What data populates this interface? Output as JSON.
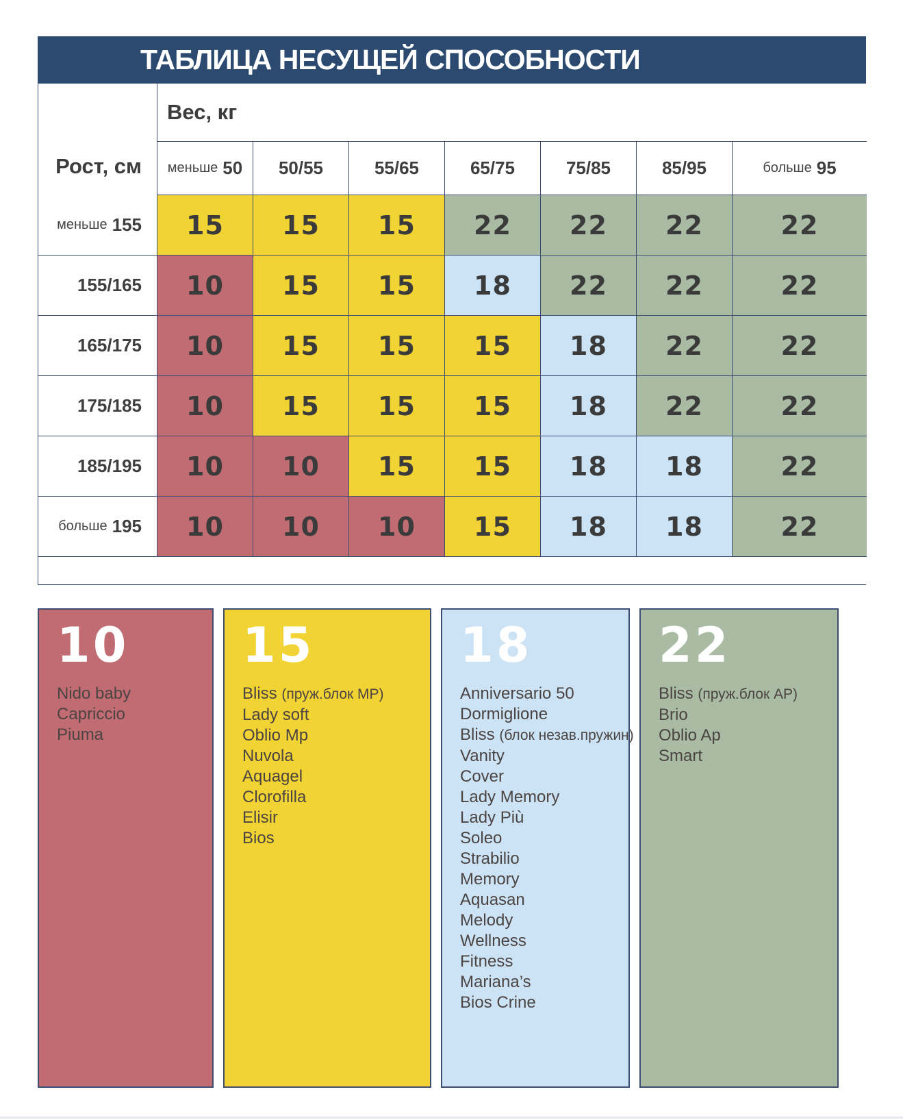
{
  "title": "ТАБЛИЦА НЕСУЩЕЙ СПОСОБНОСТИ",
  "axes": {
    "weight_label": "Вес, кг",
    "height_label": "Рост, см"
  },
  "weight_columns": [
    {
      "prefix": "меньше",
      "bold": "50"
    },
    {
      "bold": "50/55"
    },
    {
      "bold": "55/65"
    },
    {
      "bold": "65/75"
    },
    {
      "bold": "75/85"
    },
    {
      "bold": "85/95"
    },
    {
      "prefix": "больше",
      "bold": "95"
    }
  ],
  "height_rows": [
    {
      "prefix": "меньше",
      "bold": "155"
    },
    {
      "bold": "155/165"
    },
    {
      "bold": "165/175"
    },
    {
      "bold": "175/185"
    },
    {
      "bold": "185/195"
    },
    {
      "prefix": "больше",
      "bold": "195"
    }
  ],
  "chart_data": {
    "type": "heatmap",
    "title": "ТАБЛИЦА НЕСУЩЕЙ СПОСОБНОСТИ",
    "xlabel": "Вес, кг",
    "ylabel": "Рост, см",
    "x_categories": [
      "меньше 50",
      "50/55",
      "55/65",
      "65/75",
      "75/85",
      "85/95",
      "больше 95"
    ],
    "y_categories": [
      "меньше 155",
      "155/165",
      "165/175",
      "175/185",
      "185/195",
      "больше 195"
    ],
    "values": [
      [
        15,
        15,
        15,
        22,
        22,
        22,
        22
      ],
      [
        10,
        15,
        15,
        18,
        22,
        22,
        22
      ],
      [
        10,
        15,
        15,
        15,
        18,
        22,
        22
      ],
      [
        10,
        15,
        15,
        15,
        18,
        22,
        22
      ],
      [
        10,
        10,
        15,
        15,
        18,
        18,
        22
      ],
      [
        10,
        10,
        10,
        15,
        18,
        18,
        22
      ]
    ],
    "value_colors": {
      "10": "#C16C72",
      "15": "#F2D334",
      "18": "#CCE3F5",
      "22": "#A9BCA3"
    },
    "legend_position": "bottom"
  },
  "legend": [
    {
      "value": "10",
      "items": [
        {
          "name": "Nido baby"
        },
        {
          "name": "Capriccio"
        },
        {
          "name": "Piuma"
        }
      ]
    },
    {
      "value": "15",
      "items": [
        {
          "name": "Bliss",
          "note": "(пруж.блок MP)"
        },
        {
          "name": "Lady soft"
        },
        {
          "name": "Oblio Mp"
        },
        {
          "name": "Nuvola"
        },
        {
          "name": "Aquagel"
        },
        {
          "name": "Clorofilla"
        },
        {
          "name": "Elisir"
        },
        {
          "name": "Bios"
        }
      ]
    },
    {
      "value": "18",
      "items": [
        {
          "name": "Anniversario 50"
        },
        {
          "name": "Dormiglione"
        },
        {
          "name": "Bliss",
          "note": "(блок незав.пружин)"
        },
        {
          "name": "Vanity"
        },
        {
          "name": "Cover"
        },
        {
          "name": "Lady Memory"
        },
        {
          "name": "Lady Più"
        },
        {
          "name": "Soleo"
        },
        {
          "name": "Strabilio"
        },
        {
          "name": "Memory"
        },
        {
          "name": "Aquasan"
        },
        {
          "name": "Melody"
        },
        {
          "name": "Wellness"
        },
        {
          "name": "Fitness"
        },
        {
          "name": "Mariana’s"
        },
        {
          "name": "Bios Crine"
        }
      ]
    },
    {
      "value": "22",
      "items": [
        {
          "name": "Bliss",
          "note": "(пруж.блок AP)"
        },
        {
          "name": "Brio"
        },
        {
          "name": "Oblio Ap"
        },
        {
          "name": "Smart"
        }
      ]
    }
  ],
  "colors": {
    "v10": "#C16C72",
    "v15": "#F2D334",
    "v18": "#CCE3F5",
    "v22": "#A9BCA3",
    "navy": "#2C4A70",
    "border": "#3E4E72",
    "cell_text": "#3B3B3B",
    "legend_text": "#4B4442",
    "bottom_line": "#E2E8EE"
  }
}
